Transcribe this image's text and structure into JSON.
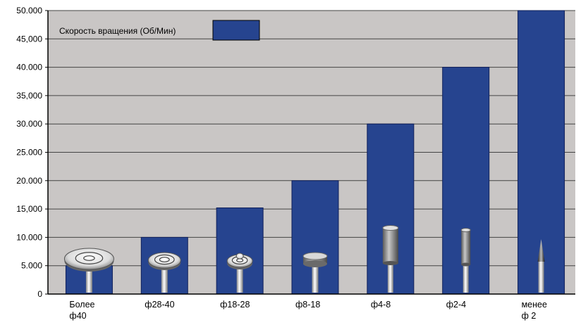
{
  "chart_data": {
    "type": "bar",
    "title": "",
    "xlabel": "",
    "ylabel": "",
    "categories": [
      [
        "Более",
        "ф40"
      ],
      [
        "ф28-40"
      ],
      [
        "ф18-28"
      ],
      [
        "ф8-18"
      ],
      [
        "ф4-8"
      ],
      [
        "ф2-4"
      ],
      [
        "менее",
        "ф 2"
      ]
    ],
    "series": [
      {
        "name": "Скорость вращения (Об/Мин)",
        "values": [
          5000,
          10000,
          15200,
          20000,
          30000,
          40000,
          50000
        ]
      }
    ],
    "ylim": [
      0,
      50000
    ],
    "yticks": [
      {
        "value": 0,
        "label": "0"
      },
      {
        "value": 5000,
        "label": "5.000"
      },
      {
        "value": 10000,
        "label": "10.000"
      },
      {
        "value": 15000,
        "label": "15,000"
      },
      {
        "value": 20000,
        "label": "20.000"
      },
      {
        "value": 25000,
        "label": "25.000"
      },
      {
        "value": 30000,
        "label": "30.000"
      },
      {
        "value": 35000,
        "label": "35,000"
      },
      {
        "value": 40000,
        "label": "40.000"
      },
      {
        "value": 45000,
        "label": "45,000"
      },
      {
        "value": 50000,
        "label": "50.000"
      }
    ],
    "grid": true,
    "legend_position": "top-left",
    "colors": {
      "bar": "#26448f",
      "bar_edge": "#10205a",
      "plot_background": "#c9c6c5",
      "gridline": "#444444",
      "axis": "#000000"
    },
    "tool_icons": [
      "wide-disc-wheel-icon",
      "medium-disc-wheel-icon",
      "small-disc-wheel-icon",
      "flat-cylinder-wheel-icon",
      "tall-cylinder-point-icon",
      "narrow-cylinder-point-icon",
      "cone-point-icon"
    ]
  }
}
